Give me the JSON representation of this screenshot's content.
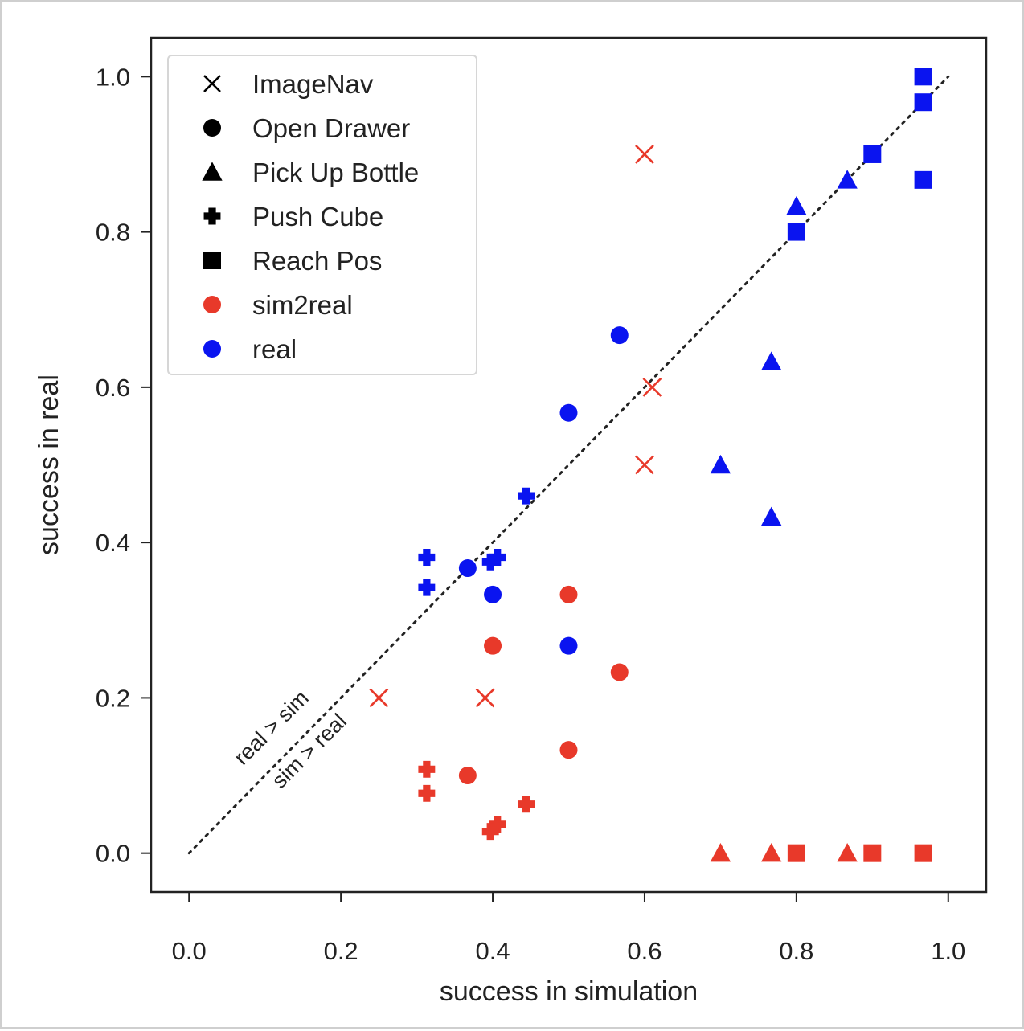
{
  "chart_data": {
    "type": "scatter",
    "xlabel": "success in simulation",
    "ylabel": "success in real",
    "xlim": [
      -0.05,
      1.05
    ],
    "ylim": [
      -0.05,
      1.05
    ],
    "xticks": [
      "0.0",
      "0.2",
      "0.4",
      "0.6",
      "0.8",
      "1.0"
    ],
    "yticks": [
      "0.0",
      "0.2",
      "0.4",
      "0.6",
      "0.8",
      "1.0"
    ],
    "xtick_values": [
      0,
      0.2,
      0.4,
      0.6,
      0.8,
      1.0
    ],
    "ytick_values": [
      0,
      0.2,
      0.4,
      0.6,
      0.8,
      1.0
    ],
    "grid": false,
    "legend_position": "top-left",
    "reference_line": {
      "style": "dotted",
      "from": [
        0,
        0
      ],
      "to": [
        1,
        1
      ],
      "color": "#222222"
    },
    "annotations": [
      {
        "text": "real > sim",
        "x": 0.115,
        "y": 0.155
      },
      {
        "text": "sim > real",
        "x": 0.165,
        "y": 0.125
      }
    ],
    "legend": {
      "markers": [
        {
          "label": "ImageNav",
          "marker": "x"
        },
        {
          "label": "Open Drawer",
          "marker": "circle"
        },
        {
          "label": "Pick Up Bottle",
          "marker": "triangle"
        },
        {
          "label": "Push Cube",
          "marker": "plus"
        },
        {
          "label": "Reach Pos",
          "marker": "square"
        }
      ],
      "colors": [
        {
          "label": "sim2real",
          "color": "#e8392a"
        },
        {
          "label": "real",
          "color": "#0a14f0"
        }
      ]
    },
    "series": [
      {
        "name": "sim2real",
        "color": "#e8392a",
        "points": [
          {
            "task": "ImageNav",
            "marker": "x",
            "x": 0.6,
            "y": 0.9
          },
          {
            "task": "ImageNav",
            "marker": "x",
            "x": 0.61,
            "y": 0.6
          },
          {
            "task": "ImageNav",
            "marker": "x",
            "x": 0.6,
            "y": 0.5
          },
          {
            "task": "ImageNav",
            "marker": "x",
            "x": 0.25,
            "y": 0.2
          },
          {
            "task": "ImageNav",
            "marker": "x",
            "x": 0.39,
            "y": 0.2
          },
          {
            "task": "Open Drawer",
            "marker": "circle",
            "x": 0.5,
            "y": 0.333
          },
          {
            "task": "Open Drawer",
            "marker": "circle",
            "x": 0.4,
            "y": 0.267
          },
          {
            "task": "Open Drawer",
            "marker": "circle",
            "x": 0.567,
            "y": 0.233
          },
          {
            "task": "Open Drawer",
            "marker": "circle",
            "x": 0.5,
            "y": 0.133
          },
          {
            "task": "Open Drawer",
            "marker": "circle",
            "x": 0.367,
            "y": 0.1
          },
          {
            "task": "Push Cube",
            "marker": "plus",
            "x": 0.313,
            "y": 0.108
          },
          {
            "task": "Push Cube",
            "marker": "plus",
            "x": 0.313,
            "y": 0.077
          },
          {
            "task": "Push Cube",
            "marker": "plus",
            "x": 0.444,
            "y": 0.063
          },
          {
            "task": "Push Cube",
            "marker": "plus",
            "x": 0.406,
            "y": 0.037
          },
          {
            "task": "Push Cube",
            "marker": "plus",
            "x": 0.397,
            "y": 0.028
          },
          {
            "task": "Pick Up Bottle",
            "marker": "triangle",
            "x": 0.7,
            "y": 0.0
          },
          {
            "task": "Pick Up Bottle",
            "marker": "triangle",
            "x": 0.767,
            "y": 0.0
          },
          {
            "task": "Pick Up Bottle",
            "marker": "triangle",
            "x": 0.867,
            "y": 0.0
          },
          {
            "task": "Reach Pos",
            "marker": "square",
            "x": 0.8,
            "y": 0.0
          },
          {
            "task": "Reach Pos",
            "marker": "square",
            "x": 0.9,
            "y": 0.0
          },
          {
            "task": "Reach Pos",
            "marker": "square",
            "x": 0.967,
            "y": 0.0
          }
        ]
      },
      {
        "name": "real",
        "color": "#0a14f0",
        "points": [
          {
            "task": "Open Drawer",
            "marker": "circle",
            "x": 0.567,
            "y": 0.667
          },
          {
            "task": "Open Drawer",
            "marker": "circle",
            "x": 0.5,
            "y": 0.567
          },
          {
            "task": "Open Drawer",
            "marker": "circle",
            "x": 0.367,
            "y": 0.367
          },
          {
            "task": "Open Drawer",
            "marker": "circle",
            "x": 0.4,
            "y": 0.333
          },
          {
            "task": "Open Drawer",
            "marker": "circle",
            "x": 0.5,
            "y": 0.267
          },
          {
            "task": "Push Cube",
            "marker": "plus",
            "x": 0.444,
            "y": 0.46
          },
          {
            "task": "Push Cube",
            "marker": "plus",
            "x": 0.313,
            "y": 0.381
          },
          {
            "task": "Push Cube",
            "marker": "plus",
            "x": 0.406,
            "y": 0.381
          },
          {
            "task": "Push Cube",
            "marker": "plus",
            "x": 0.397,
            "y": 0.375
          },
          {
            "task": "Push Cube",
            "marker": "plus",
            "x": 0.313,
            "y": 0.342
          },
          {
            "task": "Pick Up Bottle",
            "marker": "triangle",
            "x": 0.867,
            "y": 0.867
          },
          {
            "task": "Pick Up Bottle",
            "marker": "triangle",
            "x": 0.8,
            "y": 0.833
          },
          {
            "task": "Pick Up Bottle",
            "marker": "triangle",
            "x": 0.767,
            "y": 0.633
          },
          {
            "task": "Pick Up Bottle",
            "marker": "triangle",
            "x": 0.7,
            "y": 0.5
          },
          {
            "task": "Pick Up Bottle",
            "marker": "triangle",
            "x": 0.767,
            "y": 0.433
          },
          {
            "task": "Reach Pos",
            "marker": "square",
            "x": 0.967,
            "y": 1.0
          },
          {
            "task": "Reach Pos",
            "marker": "square",
            "x": 0.967,
            "y": 0.967
          },
          {
            "task": "Reach Pos",
            "marker": "square",
            "x": 0.9,
            "y": 0.9
          },
          {
            "task": "Reach Pos",
            "marker": "square",
            "x": 0.967,
            "y": 0.867
          },
          {
            "task": "Reach Pos",
            "marker": "square",
            "x": 0.8,
            "y": 0.8
          }
        ]
      }
    ]
  }
}
